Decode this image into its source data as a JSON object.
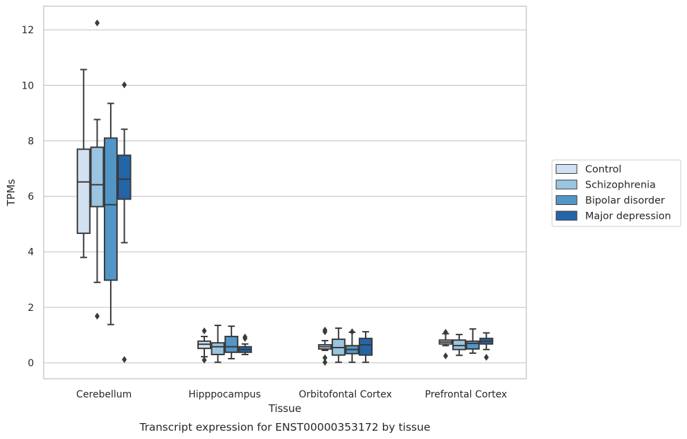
{
  "chart_data": {
    "type": "box",
    "xlabel": "Tissue",
    "ylabel": "TPMs",
    "caption": "Transcript expression for ENST00000353172 by tissue",
    "ylim": [
      -0.6,
      12.85
    ],
    "yticks": [
      0,
      2,
      4,
      6,
      8,
      10,
      12
    ],
    "grid": "horizontal",
    "legend_placement": "right",
    "categories": [
      "Cerebellum",
      "Hipppocampus",
      "Orbitofontal Cortex",
      "Prefrontal Cortex"
    ],
    "series": [
      {
        "name": "Control",
        "color": "#d1e1f1",
        "boxes": [
          {
            "whislo": 3.8,
            "q1": 4.67,
            "med": 6.52,
            "q3": 7.7,
            "whishi": 10.57,
            "fliers": []
          },
          {
            "whislo": 0.22,
            "q1": 0.52,
            "med": 0.67,
            "q3": 0.78,
            "whishi": 0.95,
            "fliers": [
              1.15,
              0.1
            ]
          },
          {
            "whislo": 0.45,
            "q1": 0.5,
            "med": 0.58,
            "q3": 0.65,
            "whishi": 0.8,
            "fliers": [
              1.18,
              1.12,
              0.18,
              0.02
            ]
          },
          {
            "whislo": 0.62,
            "q1": 0.68,
            "med": 0.75,
            "q3": 0.82,
            "whishi": 1.05,
            "fliers": [
              1.1,
              0.25
            ]
          }
        ]
      },
      {
        "name": "Schizophrenia",
        "color": "#9ac4df",
        "boxes": [
          {
            "whislo": 2.9,
            "q1": 5.63,
            "med": 6.42,
            "q3": 7.77,
            "whishi": 8.77,
            "fliers": [
              1.68,
              12.25
            ]
          },
          {
            "whislo": 0.02,
            "q1": 0.3,
            "med": 0.58,
            "q3": 0.72,
            "whishi": 1.35,
            "fliers": []
          },
          {
            "whislo": 0.02,
            "q1": 0.28,
            "med": 0.55,
            "q3": 0.85,
            "whishi": 1.25,
            "fliers": []
          },
          {
            "whislo": 0.27,
            "q1": 0.48,
            "med": 0.62,
            "q3": 0.82,
            "whishi": 1.02,
            "fliers": []
          }
        ]
      },
      {
        "name": "Bipolar disorder",
        "color": "#5296c7",
        "boxes": [
          {
            "whislo": 1.38,
            "q1": 2.98,
            "med": 5.7,
            "q3": 8.1,
            "whishi": 9.35,
            "fliers": []
          },
          {
            "whislo": 0.15,
            "q1": 0.38,
            "med": 0.58,
            "q3": 0.95,
            "whishi": 1.32,
            "fliers": []
          },
          {
            "whislo": 0.02,
            "q1": 0.33,
            "med": 0.48,
            "q3": 0.62,
            "whishi": 1.1,
            "fliers": [
              1.12
            ]
          },
          {
            "whislo": 0.35,
            "q1": 0.5,
            "med": 0.7,
            "q3": 0.78,
            "whishi": 1.22,
            "fliers": []
          }
        ]
      },
      {
        "name": "Major depression",
        "color": "#2465a8",
        "boxes": [
          {
            "whislo": 4.33,
            "q1": 5.9,
            "med": 6.62,
            "q3": 7.48,
            "whishi": 8.42,
            "fliers": [
              10.02,
              0.12
            ]
          },
          {
            "whislo": 0.3,
            "q1": 0.38,
            "med": 0.48,
            "q3": 0.58,
            "whishi": 0.68,
            "fliers": [
              0.88,
              0.93
            ]
          },
          {
            "whislo": 0.02,
            "q1": 0.28,
            "med": 0.65,
            "q3": 0.88,
            "whishi": 1.12,
            "fliers": []
          },
          {
            "whislo": 0.48,
            "q1": 0.68,
            "med": 0.78,
            "q3": 0.88,
            "whishi": 1.08,
            "fliers": [
              0.2
            ]
          }
        ]
      }
    ]
  }
}
